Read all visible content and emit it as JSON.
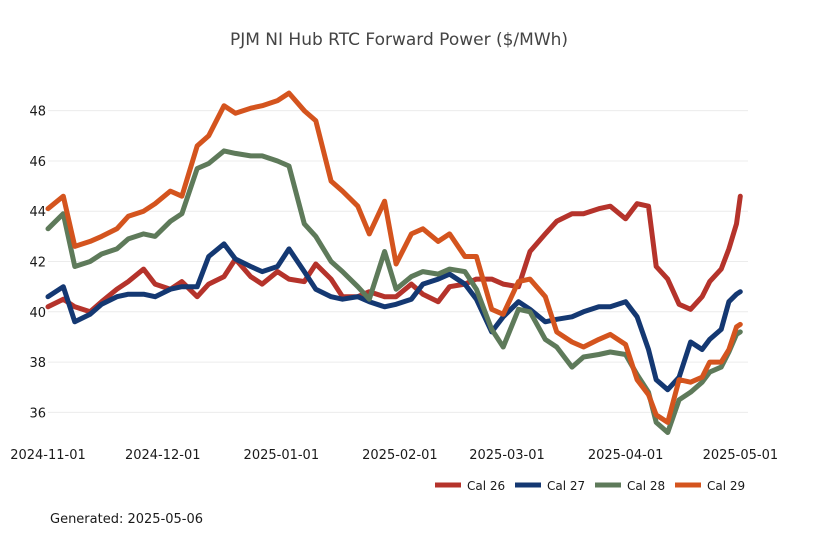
{
  "footer": {
    "generated": "Generated: 2025-05-06"
  },
  "chart_data": {
    "type": "line",
    "title": "PJM NI Hub RTC Forward Power ($/MWh)",
    "xlabel": "",
    "ylabel": "",
    "xlim": [
      "2024-11-01",
      "2025-05-03"
    ],
    "ylim": [
      34.9,
      49.3
    ],
    "x_ticks": [
      "2024-11-01",
      "2024-12-01",
      "2025-01-01",
      "2025-02-01",
      "2025-03-01",
      "2025-04-01",
      "2025-05-01"
    ],
    "y_ticks": [
      36,
      38,
      40,
      42,
      44,
      46,
      48
    ],
    "grid": "horizontal",
    "legend_position": "bottom-right",
    "series": [
      {
        "name": "Cal 26",
        "color": "#b5332b",
        "points": [
          [
            "2024-11-01",
            40.2
          ],
          [
            "2024-11-05",
            40.5
          ],
          [
            "2024-11-08",
            40.2
          ],
          [
            "2024-11-12",
            40.0
          ],
          [
            "2024-11-15",
            40.4
          ],
          [
            "2024-11-19",
            40.9
          ],
          [
            "2024-11-22",
            41.2
          ],
          [
            "2024-11-26",
            41.7
          ],
          [
            "2024-11-29",
            41.1
          ],
          [
            "2024-12-03",
            40.9
          ],
          [
            "2024-12-06",
            41.2
          ],
          [
            "2024-12-10",
            40.6
          ],
          [
            "2024-12-13",
            41.1
          ],
          [
            "2024-12-17",
            41.4
          ],
          [
            "2024-12-20",
            42.1
          ],
          [
            "2024-12-24",
            41.4
          ],
          [
            "2024-12-27",
            41.1
          ],
          [
            "2024-12-31",
            41.6
          ],
          [
            "2025-01-03",
            41.3
          ],
          [
            "2025-01-07",
            41.2
          ],
          [
            "2025-01-10",
            41.9
          ],
          [
            "2025-01-14",
            41.3
          ],
          [
            "2025-01-17",
            40.6
          ],
          [
            "2025-01-21",
            40.6
          ],
          [
            "2025-01-24",
            40.8
          ],
          [
            "2025-01-28",
            40.6
          ],
          [
            "2025-01-31",
            40.6
          ],
          [
            "2025-02-04",
            41.1
          ],
          [
            "2025-02-07",
            40.7
          ],
          [
            "2025-02-11",
            40.4
          ],
          [
            "2025-02-14",
            41.0
          ],
          [
            "2025-02-18",
            41.1
          ],
          [
            "2025-02-21",
            41.3
          ],
          [
            "2025-02-25",
            41.3
          ],
          [
            "2025-02-28",
            41.1
          ],
          [
            "2025-03-04",
            41.0
          ],
          [
            "2025-03-07",
            42.4
          ],
          [
            "2025-03-11",
            43.1
          ],
          [
            "2025-03-14",
            43.6
          ],
          [
            "2025-03-18",
            43.9
          ],
          [
            "2025-03-21",
            43.9
          ],
          [
            "2025-03-25",
            44.1
          ],
          [
            "2025-03-28",
            44.2
          ],
          [
            "2025-04-01",
            43.7
          ],
          [
            "2025-04-04",
            44.3
          ],
          [
            "2025-04-07",
            44.2
          ],
          [
            "2025-04-09",
            41.8
          ],
          [
            "2025-04-12",
            41.3
          ],
          [
            "2025-04-15",
            40.3
          ],
          [
            "2025-04-18",
            40.1
          ],
          [
            "2025-04-21",
            40.6
          ],
          [
            "2025-04-23",
            41.2
          ],
          [
            "2025-04-26",
            41.7
          ],
          [
            "2025-04-28",
            42.5
          ],
          [
            "2025-04-30",
            43.5
          ],
          [
            "2025-05-01",
            44.6
          ]
        ]
      },
      {
        "name": "Cal 27",
        "color": "#143872",
        "points": [
          [
            "2024-11-01",
            40.6
          ],
          [
            "2024-11-05",
            41.0
          ],
          [
            "2024-11-08",
            39.6
          ],
          [
            "2024-11-12",
            39.9
          ],
          [
            "2024-11-15",
            40.3
          ],
          [
            "2024-11-19",
            40.6
          ],
          [
            "2024-11-22",
            40.7
          ],
          [
            "2024-11-26",
            40.7
          ],
          [
            "2024-11-29",
            40.6
          ],
          [
            "2024-12-03",
            40.9
          ],
          [
            "2024-12-06",
            41.0
          ],
          [
            "2024-12-10",
            41.0
          ],
          [
            "2024-12-13",
            42.2
          ],
          [
            "2024-12-17",
            42.7
          ],
          [
            "2024-12-20",
            42.1
          ],
          [
            "2024-12-24",
            41.8
          ],
          [
            "2024-12-27",
            41.6
          ],
          [
            "2024-12-31",
            41.8
          ],
          [
            "2025-01-03",
            42.5
          ],
          [
            "2025-01-07",
            41.6
          ],
          [
            "2025-01-10",
            40.9
          ],
          [
            "2025-01-14",
            40.6
          ],
          [
            "2025-01-17",
            40.5
          ],
          [
            "2025-01-21",
            40.6
          ],
          [
            "2025-01-24",
            40.4
          ],
          [
            "2025-01-28",
            40.2
          ],
          [
            "2025-01-31",
            40.3
          ],
          [
            "2025-02-04",
            40.5
          ],
          [
            "2025-02-07",
            41.1
          ],
          [
            "2025-02-11",
            41.3
          ],
          [
            "2025-02-14",
            41.5
          ],
          [
            "2025-02-18",
            41.1
          ],
          [
            "2025-02-21",
            40.5
          ],
          [
            "2025-02-25",
            39.2
          ],
          [
            "2025-02-28",
            39.8
          ],
          [
            "2025-03-04",
            40.4
          ],
          [
            "2025-03-07",
            40.1
          ],
          [
            "2025-03-11",
            39.6
          ],
          [
            "2025-03-14",
            39.7
          ],
          [
            "2025-03-18",
            39.8
          ],
          [
            "2025-03-21",
            40.0
          ],
          [
            "2025-03-25",
            40.2
          ],
          [
            "2025-03-28",
            40.2
          ],
          [
            "2025-04-01",
            40.4
          ],
          [
            "2025-04-04",
            39.8
          ],
          [
            "2025-04-07",
            38.5
          ],
          [
            "2025-04-09",
            37.3
          ],
          [
            "2025-04-12",
            36.9
          ],
          [
            "2025-04-15",
            37.4
          ],
          [
            "2025-04-18",
            38.8
          ],
          [
            "2025-04-21",
            38.5
          ],
          [
            "2025-04-23",
            38.9
          ],
          [
            "2025-04-26",
            39.3
          ],
          [
            "2025-04-28",
            40.4
          ],
          [
            "2025-04-30",
            40.7
          ],
          [
            "2025-05-01",
            40.8
          ]
        ]
      },
      {
        "name": "Cal 28",
        "color": "#5e7a5a",
        "points": [
          [
            "2024-11-01",
            43.3
          ],
          [
            "2024-11-05",
            43.9
          ],
          [
            "2024-11-08",
            41.8
          ],
          [
            "2024-11-12",
            42.0
          ],
          [
            "2024-11-15",
            42.3
          ],
          [
            "2024-11-19",
            42.5
          ],
          [
            "2024-11-22",
            42.9
          ],
          [
            "2024-11-26",
            43.1
          ],
          [
            "2024-11-29",
            43.0
          ],
          [
            "2024-12-03",
            43.6
          ],
          [
            "2024-12-06",
            43.9
          ],
          [
            "2024-12-10",
            45.7
          ],
          [
            "2024-12-13",
            45.9
          ],
          [
            "2024-12-17",
            46.4
          ],
          [
            "2024-12-20",
            46.3
          ],
          [
            "2024-12-24",
            46.2
          ],
          [
            "2024-12-27",
            46.2
          ],
          [
            "2024-12-31",
            46.0
          ],
          [
            "2025-01-03",
            45.8
          ],
          [
            "2025-01-07",
            43.5
          ],
          [
            "2025-01-10",
            43.0
          ],
          [
            "2025-01-14",
            42.0
          ],
          [
            "2025-01-17",
            41.6
          ],
          [
            "2025-01-21",
            41.0
          ],
          [
            "2025-01-24",
            40.5
          ],
          [
            "2025-01-28",
            42.4
          ],
          [
            "2025-01-31",
            40.9
          ],
          [
            "2025-02-04",
            41.4
          ],
          [
            "2025-02-07",
            41.6
          ],
          [
            "2025-02-11",
            41.5
          ],
          [
            "2025-02-14",
            41.7
          ],
          [
            "2025-02-18",
            41.6
          ],
          [
            "2025-02-21",
            40.9
          ],
          [
            "2025-02-25",
            39.3
          ],
          [
            "2025-02-28",
            38.6
          ],
          [
            "2025-03-04",
            40.1
          ],
          [
            "2025-03-07",
            40.0
          ],
          [
            "2025-03-11",
            38.9
          ],
          [
            "2025-03-14",
            38.6
          ],
          [
            "2025-03-18",
            37.8
          ],
          [
            "2025-03-21",
            38.2
          ],
          [
            "2025-03-25",
            38.3
          ],
          [
            "2025-03-28",
            38.4
          ],
          [
            "2025-04-01",
            38.3
          ],
          [
            "2025-04-04",
            37.5
          ],
          [
            "2025-04-07",
            36.8
          ],
          [
            "2025-04-09",
            35.6
          ],
          [
            "2025-04-12",
            35.2
          ],
          [
            "2025-04-15",
            36.5
          ],
          [
            "2025-04-18",
            36.8
          ],
          [
            "2025-04-21",
            37.2
          ],
          [
            "2025-04-23",
            37.6
          ],
          [
            "2025-04-26",
            37.8
          ],
          [
            "2025-04-28",
            38.4
          ],
          [
            "2025-04-30",
            39.1
          ],
          [
            "2025-05-01",
            39.2
          ]
        ]
      },
      {
        "name": "Cal 29",
        "color": "#d4541e",
        "points": [
          [
            "2024-11-01",
            44.1
          ],
          [
            "2024-11-05",
            44.6
          ],
          [
            "2024-11-08",
            42.6
          ],
          [
            "2024-11-12",
            42.8
          ],
          [
            "2024-11-15",
            43.0
          ],
          [
            "2024-11-19",
            43.3
          ],
          [
            "2024-11-22",
            43.8
          ],
          [
            "2024-11-26",
            44.0
          ],
          [
            "2024-11-29",
            44.3
          ],
          [
            "2024-12-03",
            44.8
          ],
          [
            "2024-12-06",
            44.6
          ],
          [
            "2024-12-10",
            46.6
          ],
          [
            "2024-12-13",
            47.0
          ],
          [
            "2024-12-17",
            48.2
          ],
          [
            "2024-12-20",
            47.9
          ],
          [
            "2024-12-24",
            48.1
          ],
          [
            "2024-12-27",
            48.2
          ],
          [
            "2024-12-31",
            48.4
          ],
          [
            "2025-01-03",
            48.7
          ],
          [
            "2025-01-07",
            48.0
          ],
          [
            "2025-01-10",
            47.6
          ],
          [
            "2025-01-14",
            45.2
          ],
          [
            "2025-01-17",
            44.8
          ],
          [
            "2025-01-21",
            44.2
          ],
          [
            "2025-01-24",
            43.1
          ],
          [
            "2025-01-28",
            44.4
          ],
          [
            "2025-01-31",
            41.9
          ],
          [
            "2025-02-04",
            43.1
          ],
          [
            "2025-02-07",
            43.3
          ],
          [
            "2025-02-11",
            42.8
          ],
          [
            "2025-02-14",
            43.1
          ],
          [
            "2025-02-18",
            42.2
          ],
          [
            "2025-02-21",
            42.2
          ],
          [
            "2025-02-25",
            40.1
          ],
          [
            "2025-02-28",
            39.9
          ],
          [
            "2025-03-04",
            41.2
          ],
          [
            "2025-03-07",
            41.3
          ],
          [
            "2025-03-11",
            40.6
          ],
          [
            "2025-03-14",
            39.2
          ],
          [
            "2025-03-18",
            38.8
          ],
          [
            "2025-03-21",
            38.6
          ],
          [
            "2025-03-25",
            38.9
          ],
          [
            "2025-03-28",
            39.1
          ],
          [
            "2025-04-01",
            38.7
          ],
          [
            "2025-04-04",
            37.3
          ],
          [
            "2025-04-07",
            36.7
          ],
          [
            "2025-04-09",
            35.9
          ],
          [
            "2025-04-12",
            35.6
          ],
          [
            "2025-04-15",
            37.3
          ],
          [
            "2025-04-18",
            37.2
          ],
          [
            "2025-04-21",
            37.4
          ],
          [
            "2025-04-23",
            38.0
          ],
          [
            "2025-04-26",
            38.0
          ],
          [
            "2025-04-28",
            38.5
          ],
          [
            "2025-04-30",
            39.4
          ],
          [
            "2025-05-01",
            39.5
          ]
        ]
      }
    ]
  }
}
